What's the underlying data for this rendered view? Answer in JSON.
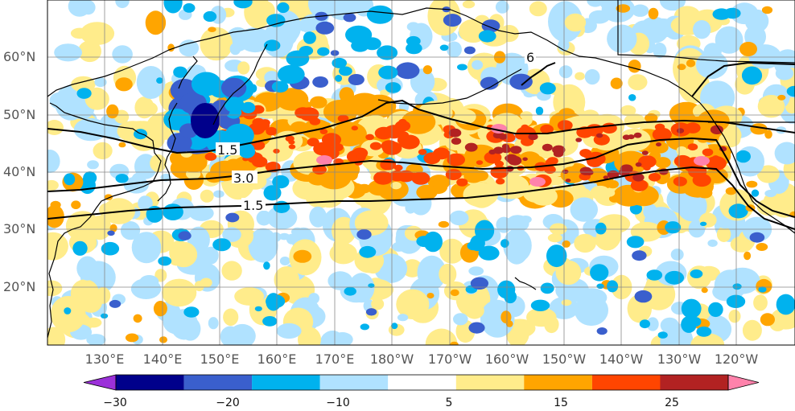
{
  "map": {
    "lon_labels": [
      "130°E",
      "140°E",
      "150°E",
      "160°E",
      "170°E",
      "180°W",
      "170°W",
      "160°W",
      "150°W",
      "140°W",
      "130°W",
      "120°W"
    ],
    "lat_labels": [
      "60°N",
      "50°N",
      "40°N",
      "30°N",
      "20°N"
    ],
    "contour_labels": [
      "1.5",
      "3.0",
      "1.5",
      "6"
    ]
  },
  "colorbar": {
    "tick_labels": [
      "−30",
      "−20",
      "−10",
      "5",
      "15",
      "25"
    ],
    "colors": [
      "#9b30d9",
      "#00008b",
      "#3a5fcd",
      "#00b2ee",
      "#b0e2ff",
      "#ffffff",
      "#ffec8b",
      "#ffa500",
      "#ff4500",
      "#b22222",
      "#ff82ab"
    ]
  },
  "palette": {
    "neg_strong": "#3a5fcd",
    "neg_mid": "#00b2ee",
    "neg_weak": "#b0e2ff",
    "pos_weak": "#ffec8b",
    "pos_mid": "#ffa500",
    "pos_strong": "#ff4500",
    "pos_vstrong": "#b22222",
    "pos_extreme": "#ff82ab"
  }
}
